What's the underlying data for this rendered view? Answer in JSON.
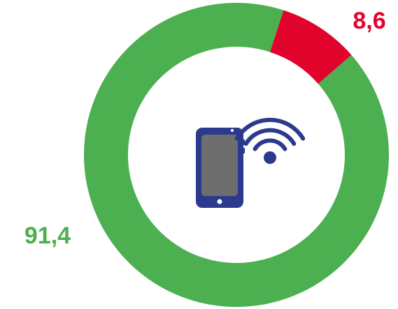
{
  "chart_data": {
    "type": "donut",
    "values": [
      8.6,
      91.4
    ],
    "value_labels": [
      "8,6",
      "91,4"
    ],
    "colors": [
      "#e2032c",
      "#4caf50"
    ]
  }
}
